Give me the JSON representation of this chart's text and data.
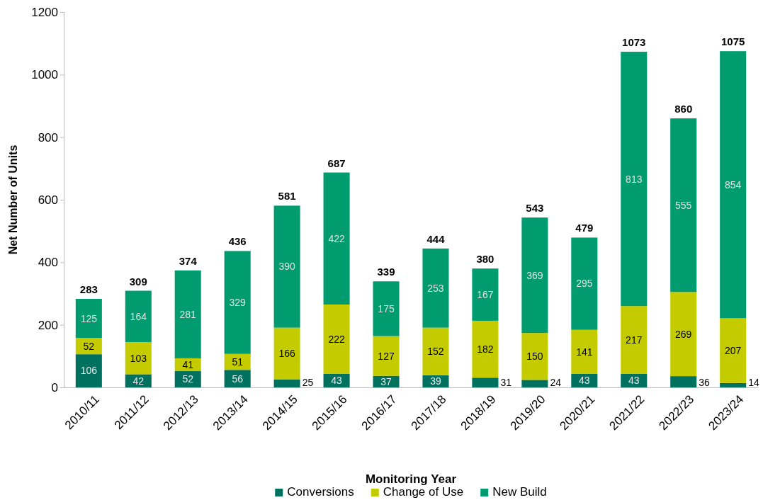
{
  "chart_data": {
    "type": "bar",
    "stacked": true,
    "xlabel": "Monitoring Year",
    "ylabel": "Net Number of Units",
    "categories": [
      "2010/11",
      "2011/12",
      "2012/13",
      "2013/14",
      "2014/15",
      "2015/16",
      "2016/17",
      "2017/18",
      "2018/19",
      "2019/20",
      "2020/21",
      "2021/22",
      "2022/23",
      "2023/24"
    ],
    "series": [
      {
        "name": "Conversions",
        "color": "#00715f",
        "values": [
          106,
          42,
          52,
          56,
          25,
          43,
          37,
          39,
          31,
          24,
          43,
          43,
          36,
          14
        ]
      },
      {
        "name": "Change of Use",
        "color": "#c4cc00",
        "values": [
          52,
          103,
          41,
          51,
          166,
          222,
          127,
          152,
          182,
          150,
          141,
          217,
          269,
          207
        ]
      },
      {
        "name": "New Build",
        "color": "#009c70",
        "values": [
          125,
          164,
          281,
          329,
          390,
          422,
          175,
          253,
          167,
          369,
          295,
          813,
          555,
          854
        ]
      }
    ],
    "totals": [
      "283",
      "309",
      "374",
      "436",
      "581",
      "687",
      "339",
      "444",
      "380",
      "543",
      "479",
      "1073",
      "860",
      "1075"
    ],
    "data_labels": true,
    "ylim": [
      0,
      1200
    ],
    "yticks": [
      0,
      200,
      400,
      600,
      800,
      1000,
      1200
    ],
    "grid": false,
    "legend": "bottom"
  }
}
